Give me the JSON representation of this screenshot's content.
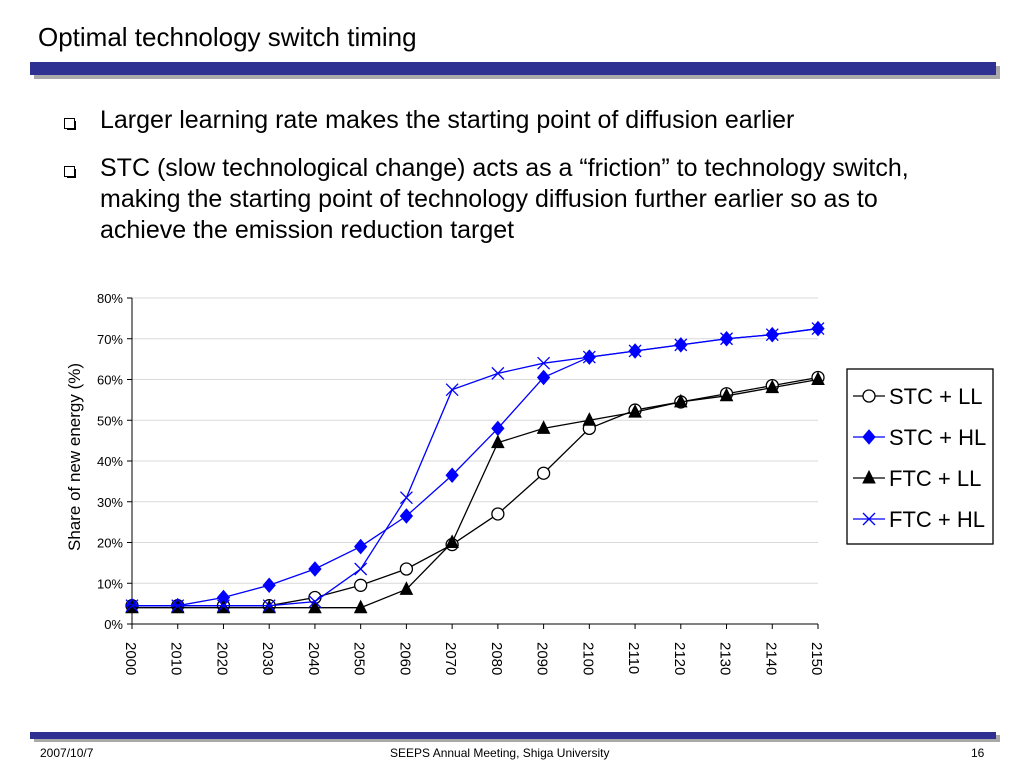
{
  "slide": {
    "title": "Optimal technology switch timing",
    "bullets": [
      "Larger learning rate makes the starting point of diffusion earlier",
      "STC (slow technological change) acts as a “friction” to technology switch, making the starting point of technology diffusion further earlier so as to achieve the emission reduction target"
    ]
  },
  "footer": {
    "date": "2007/10/7",
    "event": "SEEPS Annual Meeting, Shiga University",
    "page": "16"
  },
  "colors": {
    "accent": "#2e3192",
    "shadow": "#a9a9a9",
    "series_black": "#000000",
    "series_blue": "#0000ff"
  },
  "chart_data": {
    "type": "line",
    "title": "",
    "xlabel": "",
    "ylabel": "Share of new energy (%)",
    "x": [
      2000,
      2010,
      2020,
      2030,
      2040,
      2050,
      2060,
      2070,
      2080,
      2090,
      2100,
      2110,
      2120,
      2130,
      2140,
      2150
    ],
    "ylim": [
      0,
      80
    ],
    "yticks": [
      "0%",
      "10%",
      "20%",
      "30%",
      "40%",
      "50%",
      "60%",
      "70%",
      "80%"
    ],
    "grid": true,
    "legend_position": "right",
    "series": [
      {
        "name": "STC + LL",
        "marker": "circle-open",
        "color": "#000000",
        "values": [
          4.5,
          4.5,
          4.5,
          4.5,
          6.5,
          9.5,
          13.5,
          19.5,
          27,
          37,
          48,
          52.5,
          54.5,
          56.5,
          58.5,
          60.5
        ]
      },
      {
        "name": "STC + HL",
        "marker": "diamond",
        "color": "#0000ff",
        "values": [
          4.5,
          4.5,
          6.5,
          9.5,
          13.5,
          19,
          26.5,
          36.5,
          48,
          60.5,
          65.5,
          67,
          68.5,
          70,
          71,
          72.5
        ]
      },
      {
        "name": "FTC + LL",
        "marker": "triangle",
        "color": "#000000",
        "values": [
          4,
          4,
          4,
          4,
          4,
          4,
          8.5,
          20,
          44.5,
          48,
          50,
          52,
          54.5,
          56,
          58,
          60
        ]
      },
      {
        "name": "FTC + HL",
        "marker": "x",
        "color": "#0000ff",
        "values": [
          4.5,
          4.5,
          4.5,
          4.5,
          5.5,
          13.5,
          31,
          57.5,
          61.5,
          64,
          65.5,
          67,
          68.5,
          70,
          71,
          72.5
        ]
      }
    ]
  }
}
